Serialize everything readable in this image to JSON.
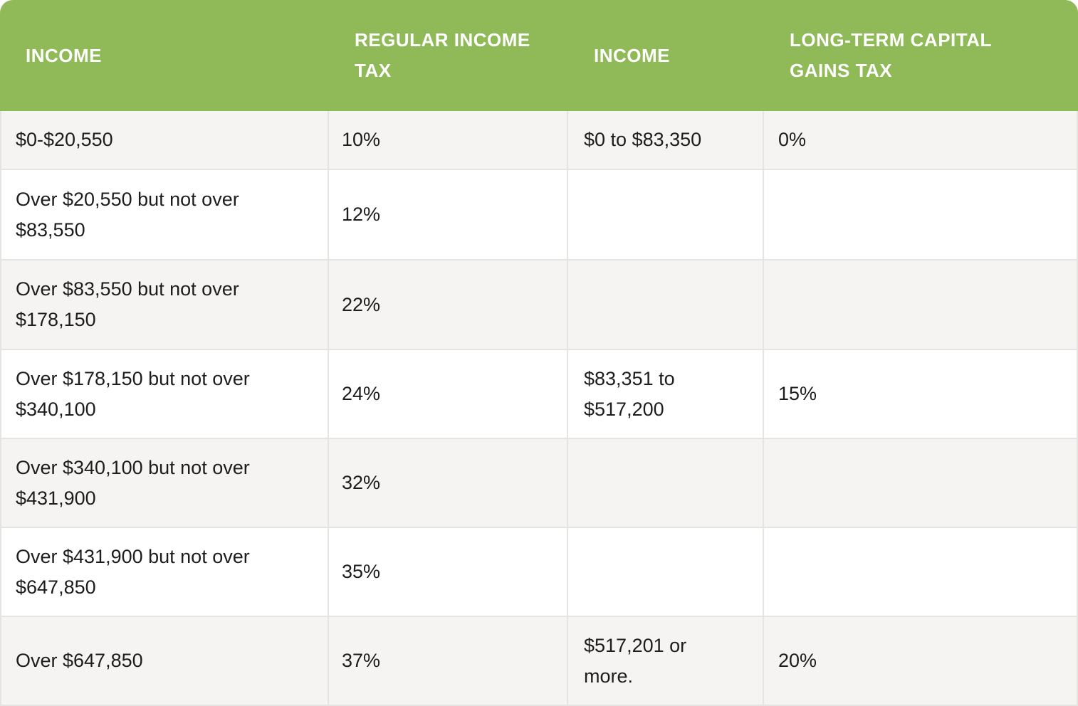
{
  "header": {
    "col1": "INCOME",
    "col2": "REGULAR INCOME TAX",
    "col3": "INCOME",
    "col4": "LONG-TERM CAPITAL GAINS TAX"
  },
  "rows": [
    {
      "c1": "$0-$20,550",
      "c2": "10%",
      "c3": "$0 to $83,350",
      "c4": "0%"
    },
    {
      "c1": "Over $20,550 but not over $83,550",
      "c2": "12%",
      "c3": "",
      "c4": ""
    },
    {
      "c1": "Over $83,550 but not over $178,150",
      "c2": "22%",
      "c3": "",
      "c4": ""
    },
    {
      "c1": "Over $178,150 but not over $340,100",
      "c2": "24%",
      "c3": "$83,351 to $517,200",
      "c4": "15%"
    },
    {
      "c1": "Over $340,100 but not over $431,900",
      "c2": "32%",
      "c3": "",
      "c4": ""
    },
    {
      "c1": "Over $431,900 but not over $647,850",
      "c2": "35%",
      "c3": "",
      "c4": ""
    },
    {
      "c1": "Over $647,850",
      "c2": "37%",
      "c3": "$517,201 or more.",
      "c4": "20%"
    }
  ],
  "colors": {
    "header_bg": "#90b957",
    "header_text": "#ffffff",
    "row_alt_bg": "#f5f4f2",
    "row_bg": "#ffffff",
    "border": "#e5e4e1",
    "text": "#1d1d1d"
  },
  "chart_data": {
    "type": "table",
    "title": "",
    "columns": [
      "INCOME",
      "REGULAR INCOME TAX",
      "INCOME",
      "LONG-TERM CAPITAL GAINS TAX"
    ],
    "cells": [
      [
        "$0-$20,550",
        "10%",
        "$0 to $83,350",
        "0%"
      ],
      [
        "Over $20,550 but not over $83,550",
        "12%",
        "",
        ""
      ],
      [
        "Over $83,550 but not over $178,150",
        "22%",
        "",
        ""
      ],
      [
        "Over $178,150 but not over $340,100",
        "24%",
        "$83,351 to $517,200",
        "15%"
      ],
      [
        "Over $340,100 but not over $431,900",
        "32%",
        "",
        ""
      ],
      [
        "Over $431,900 but not over $647,850",
        "35%",
        "",
        ""
      ],
      [
        "Over $647,850",
        "37%",
        "$517,201 or more.",
        "20%"
      ]
    ]
  }
}
